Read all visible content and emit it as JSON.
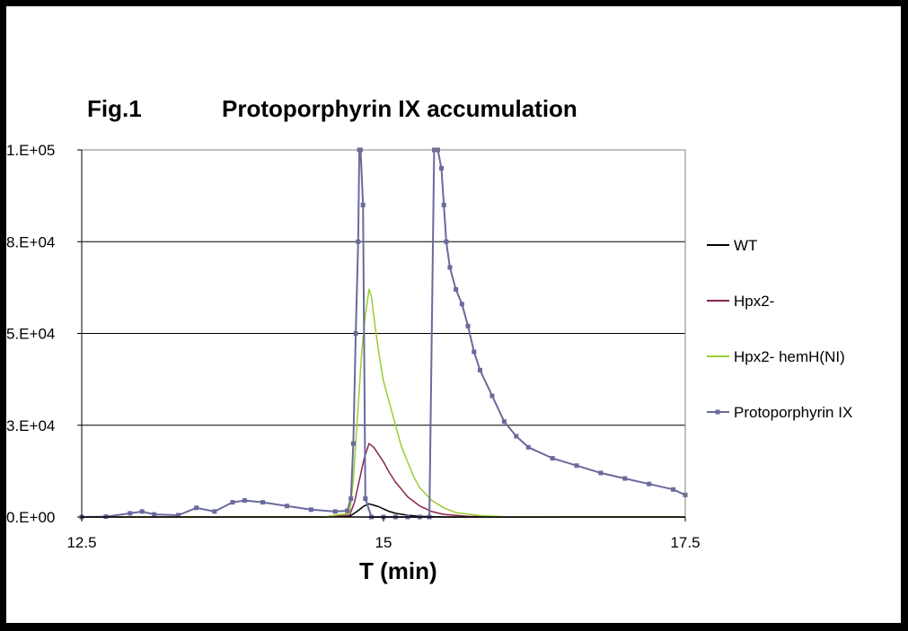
{
  "chart_data": {
    "type": "line",
    "figure_label": "Fig.1",
    "title": "Protoporphyrin IX accumulation",
    "xlabel": "T (min)",
    "ylabel": "",
    "xlim": [
      12.5,
      17.5
    ],
    "ylim": [
      0,
      100000
    ],
    "x_ticks": [
      12.5,
      15,
      17.5
    ],
    "x_tick_labels": [
      "12.5",
      "15",
      "17.5"
    ],
    "y_ticks": [
      0,
      25000,
      50000,
      75000,
      100000
    ],
    "y_tick_labels": [
      "0.E+00",
      "3.E+04",
      "5.E+04",
      "8.E+04",
      "1.E+05"
    ],
    "grid": "horizontal",
    "legend_position": "right",
    "series": [
      {
        "name": "WT",
        "color": "#000000",
        "marker": "none",
        "x": [
          12.5,
          13.5,
          14.5,
          14.72,
          14.78,
          14.84,
          14.88,
          14.92,
          14.96,
          15.0,
          15.05,
          15.1,
          15.2,
          15.3,
          15.5,
          16.0,
          17.5
        ],
        "y": [
          0,
          0,
          0,
          200,
          1500,
          3000,
          3600,
          3200,
          2800,
          2200,
          1500,
          1000,
          500,
          200,
          0,
          0,
          0
        ]
      },
      {
        "name": "Hpx2-",
        "color": "#8b2252",
        "marker": "none",
        "x": [
          12.5,
          13.5,
          14.5,
          14.72,
          14.76,
          14.8,
          14.84,
          14.88,
          14.92,
          14.96,
          15.0,
          15.05,
          15.1,
          15.15,
          15.2,
          15.3,
          15.4,
          15.5,
          15.7,
          16.0,
          17.5
        ],
        "y": [
          0,
          0,
          0,
          500,
          4000,
          10000,
          16000,
          20000,
          19000,
          17000,
          15000,
          12000,
          9500,
          7500,
          5500,
          3000,
          1500,
          700,
          200,
          0,
          0
        ]
      },
      {
        "name": "Hpx2- hemH(NI)",
        "color": "#9acd32",
        "marker": "none",
        "x": [
          12.5,
          13.5,
          14.5,
          14.72,
          14.75,
          14.78,
          14.82,
          14.85,
          14.88,
          14.9,
          14.93,
          14.96,
          15.0,
          15.05,
          15.1,
          15.15,
          15.2,
          15.25,
          15.3,
          15.4,
          15.5,
          15.6,
          15.8,
          16.0,
          16.5,
          17.5
        ],
        "y": [
          0,
          0,
          0,
          1000,
          10000,
          25000,
          45000,
          55000,
          62000,
          60000,
          52000,
          45000,
          37000,
          31000,
          25000,
          19000,
          15000,
          11000,
          8000,
          4500,
          2500,
          1200,
          400,
          100,
          0,
          0
        ]
      },
      {
        "name": "Protoporphyrin IX",
        "color": "#6a6a9c",
        "marker": "square",
        "x": [
          12.5,
          12.7,
          12.9,
          13.0,
          13.1,
          13.3,
          13.45,
          13.6,
          13.75,
          13.85,
          14.0,
          14.2,
          14.4,
          14.6,
          14.7,
          14.73,
          14.75,
          14.77,
          14.79,
          14.8,
          14.81,
          14.83,
          14.85,
          14.9,
          15.0,
          15.1,
          15.2,
          15.3,
          15.38,
          15.42,
          15.45,
          15.48,
          15.5,
          15.52,
          15.55,
          15.6,
          15.65,
          15.7,
          15.75,
          15.8,
          15.9,
          16.0,
          16.1,
          16.2,
          16.4,
          16.6,
          16.8,
          17.0,
          17.2,
          17.4,
          17.5
        ],
        "y": [
          0,
          100,
          1000,
          1500,
          700,
          500,
          2500,
          1500,
          4000,
          4500,
          4000,
          3000,
          2000,
          1500,
          1700,
          5000,
          20000,
          50000,
          75000,
          100000,
          100000,
          85000,
          5000,
          0,
          0,
          0,
          0,
          0,
          0,
          100000,
          100000,
          95000,
          85000,
          75000,
          68000,
          62000,
          58000,
          52000,
          45000,
          40000,
          33000,
          26000,
          22000,
          19000,
          16000,
          14000,
          12000,
          10500,
          9000,
          7500,
          6000
        ]
      }
    ]
  }
}
